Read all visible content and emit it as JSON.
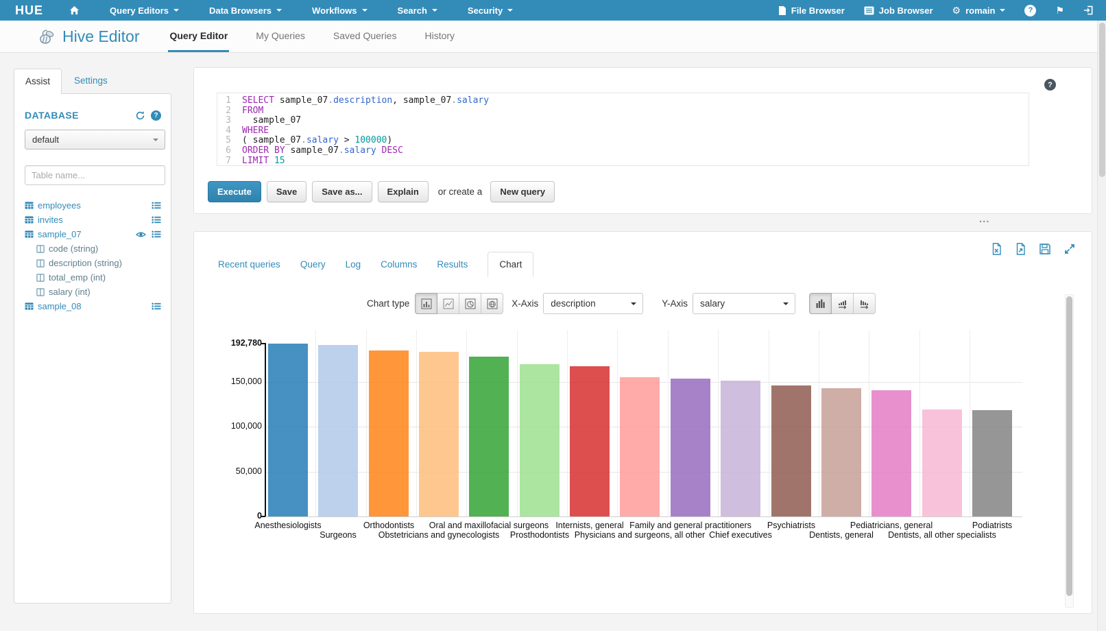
{
  "glyphs": {
    "question_mark": "?",
    "flag": "⚑",
    "gears": "⚙",
    "resize_handle": "...",
    "logo": "HUE"
  },
  "topnav": {
    "menus": [
      {
        "label": "Query Editors"
      },
      {
        "label": "Data Browsers"
      },
      {
        "label": "Workflows"
      },
      {
        "label": "Search"
      },
      {
        "label": "Security"
      }
    ],
    "file_browser": "File Browser",
    "job_browser": "Job Browser",
    "user": "romain"
  },
  "header": {
    "app_title": "Hive Editor",
    "tabs": [
      {
        "label": "Query Editor",
        "active": true
      },
      {
        "label": "My Queries",
        "active": false
      },
      {
        "label": "Saved Queries",
        "active": false
      },
      {
        "label": "History",
        "active": false
      }
    ]
  },
  "assist": {
    "tab_assist": "Assist",
    "tab_settings": "Settings",
    "database_label": "DATABASE",
    "database_selected": "default",
    "table_filter_placeholder": "Table name...",
    "tables": [
      {
        "name": "employees",
        "has_preview": false,
        "columns": []
      },
      {
        "name": "invites",
        "has_preview": false,
        "columns": []
      },
      {
        "name": "sample_07",
        "has_preview": true,
        "columns": [
          "code (string)",
          "description (string)",
          "total_emp (int)",
          "salary (int)"
        ]
      },
      {
        "name": "sample_08",
        "has_preview": false,
        "columns": []
      }
    ]
  },
  "editor": {
    "lines": [
      [
        {
          "t": "SELECT",
          "s": "kw"
        },
        {
          "t": " ",
          "s": "pl"
        },
        {
          "t": "sample_07",
          "s": "id"
        },
        {
          "t": ".",
          "s": "dot"
        },
        {
          "t": "description",
          "s": "col"
        },
        {
          "t": ", ",
          "s": "pl"
        },
        {
          "t": "sample_07",
          "s": "id"
        },
        {
          "t": ".",
          "s": "dot"
        },
        {
          "t": "salary",
          "s": "col"
        }
      ],
      [
        {
          "t": "FROM",
          "s": "kw"
        }
      ],
      [
        {
          "t": "  sample_07",
          "s": "id"
        }
      ],
      [
        {
          "t": "WHERE",
          "s": "kw"
        }
      ],
      [
        {
          "t": "( ",
          "s": "pl"
        },
        {
          "t": "sample_07",
          "s": "id"
        },
        {
          "t": ".",
          "s": "dot"
        },
        {
          "t": "salary",
          "s": "col"
        },
        {
          "t": " > ",
          "s": "pl"
        },
        {
          "t": "100000",
          "s": "num"
        },
        {
          "t": ")",
          "s": "pl"
        }
      ],
      [
        {
          "t": "ORDER BY",
          "s": "kw"
        },
        {
          "t": " ",
          "s": "pl"
        },
        {
          "t": "sample_07",
          "s": "id"
        },
        {
          "t": ".",
          "s": "dot"
        },
        {
          "t": "salary",
          "s": "col"
        },
        {
          "t": " ",
          "s": "pl"
        },
        {
          "t": "DESC",
          "s": "kw"
        }
      ],
      [
        {
          "t": "LIMIT",
          "s": "kw"
        },
        {
          "t": " ",
          "s": "pl"
        },
        {
          "t": "15",
          "s": "num"
        }
      ]
    ],
    "buttons": {
      "execute": "Execute",
      "save": "Save",
      "save_as": "Save as...",
      "explain": "Explain",
      "or_create_a": "or create a",
      "new_query": "New query"
    }
  },
  "results": {
    "tabs": [
      {
        "label": "Recent queries",
        "active": false
      },
      {
        "label": "Query",
        "active": false
      },
      {
        "label": "Log",
        "active": false
      },
      {
        "label": "Columns",
        "active": false
      },
      {
        "label": "Results",
        "active": false
      },
      {
        "label": "Chart",
        "active": true
      }
    ],
    "controls": {
      "chart_type_label": "Chart type",
      "x_axis_label": "X-Axis",
      "x_axis_value": "description",
      "y_axis_label": "Y-Axis",
      "y_axis_value": "salary"
    },
    "action_icons": [
      "download-excel",
      "download-document",
      "save-results",
      "expand-results"
    ],
    "chart_type_icons": [
      "bar-chart",
      "line-chart",
      "pie-chart",
      "map-chart"
    ],
    "bar_mode_icons": [
      "grouped-bars",
      "sort-ascending-bars",
      "sort-descending-bars"
    ]
  },
  "chart_data": {
    "type": "bar",
    "title": "",
    "xlabel": "description",
    "ylabel": "salary",
    "categories": [
      "Anesthesiologists",
      "Surgeons",
      "Orthodontists",
      "Obstetricians and gynecologists",
      "Oral and maxillofacial surgeons",
      "Prosthodontists",
      "Internists, general",
      "Physicians and surgeons, all other",
      "Family and general practitioners",
      "Chief executives",
      "Psychiatrists",
      "Dentists, general",
      "Pediatricians, general",
      "Dentists, all other specialists",
      "Podiatrists"
    ],
    "values": [
      192780,
      191410,
      185340,
      183610,
      178440,
      169810,
      167270,
      155150,
      153640,
      151370,
      146150,
      142870,
      140690,
      119100,
      118220
    ],
    "ylim": [
      0,
      192780
    ],
    "yticks": [
      0,
      50000,
      100000,
      150000,
      192780
    ],
    "ytick_labels": [
      "0",
      "50,000",
      "100,000",
      "150,000",
      "192,780"
    ],
    "grid": true,
    "legend": "none",
    "bar_colors": [
      "#1f77b4",
      "#aec7e8",
      "#ff7f0e",
      "#ffbb78",
      "#2ca02c",
      "#98df8a",
      "#d62728",
      "#ff9896",
      "#9467bd",
      "#c5b0d5",
      "#8c564b",
      "#c49c94",
      "#e377c2",
      "#f7b6d2",
      "#7f7f7f"
    ],
    "bar_opacity": 0.82
  }
}
